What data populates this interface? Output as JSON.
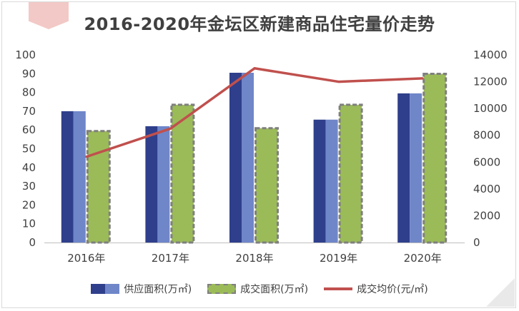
{
  "chart_data": {
    "type": "bar+line",
    "title": "2016-2020年金坛区新建商品住宅量价走势",
    "categories": [
      "2016年",
      "2017年",
      "2018年",
      "2019年",
      "2020年"
    ],
    "series": [
      {
        "name": "供应面积(万㎡)",
        "type": "bar",
        "axis": "left",
        "values": [
          70,
          62,
          90.5,
          65.5,
          79.5
        ]
      },
      {
        "name": "成交面积(万㎡)",
        "type": "bar",
        "axis": "left",
        "values": [
          60,
          74,
          61.5,
          74,
          90.5
        ]
      },
      {
        "name": "成交均价(元/㎡)",
        "type": "line",
        "axis": "right",
        "values": [
          6400,
          8500,
          13000,
          12000,
          12250
        ]
      }
    ],
    "y_left": {
      "range": [
        0,
        100
      ],
      "ticks": [
        "0",
        "10",
        "20",
        "30",
        "40",
        "50",
        "60",
        "70",
        "80",
        "90",
        "100"
      ]
    },
    "y_right": {
      "range": [
        0,
        14000
      ],
      "ticks": [
        "0",
        "2000",
        "4000",
        "6000",
        "8000",
        "10000",
        "12000",
        "14000"
      ]
    },
    "grid": false,
    "legend_position": "bottom",
    "colors": {
      "supply_dark": "#2f3f8c",
      "supply_light": "#6f86c9",
      "deal": "#9bbb59",
      "deal_border": "#7f7f7f",
      "price": "#c0504d"
    }
  }
}
